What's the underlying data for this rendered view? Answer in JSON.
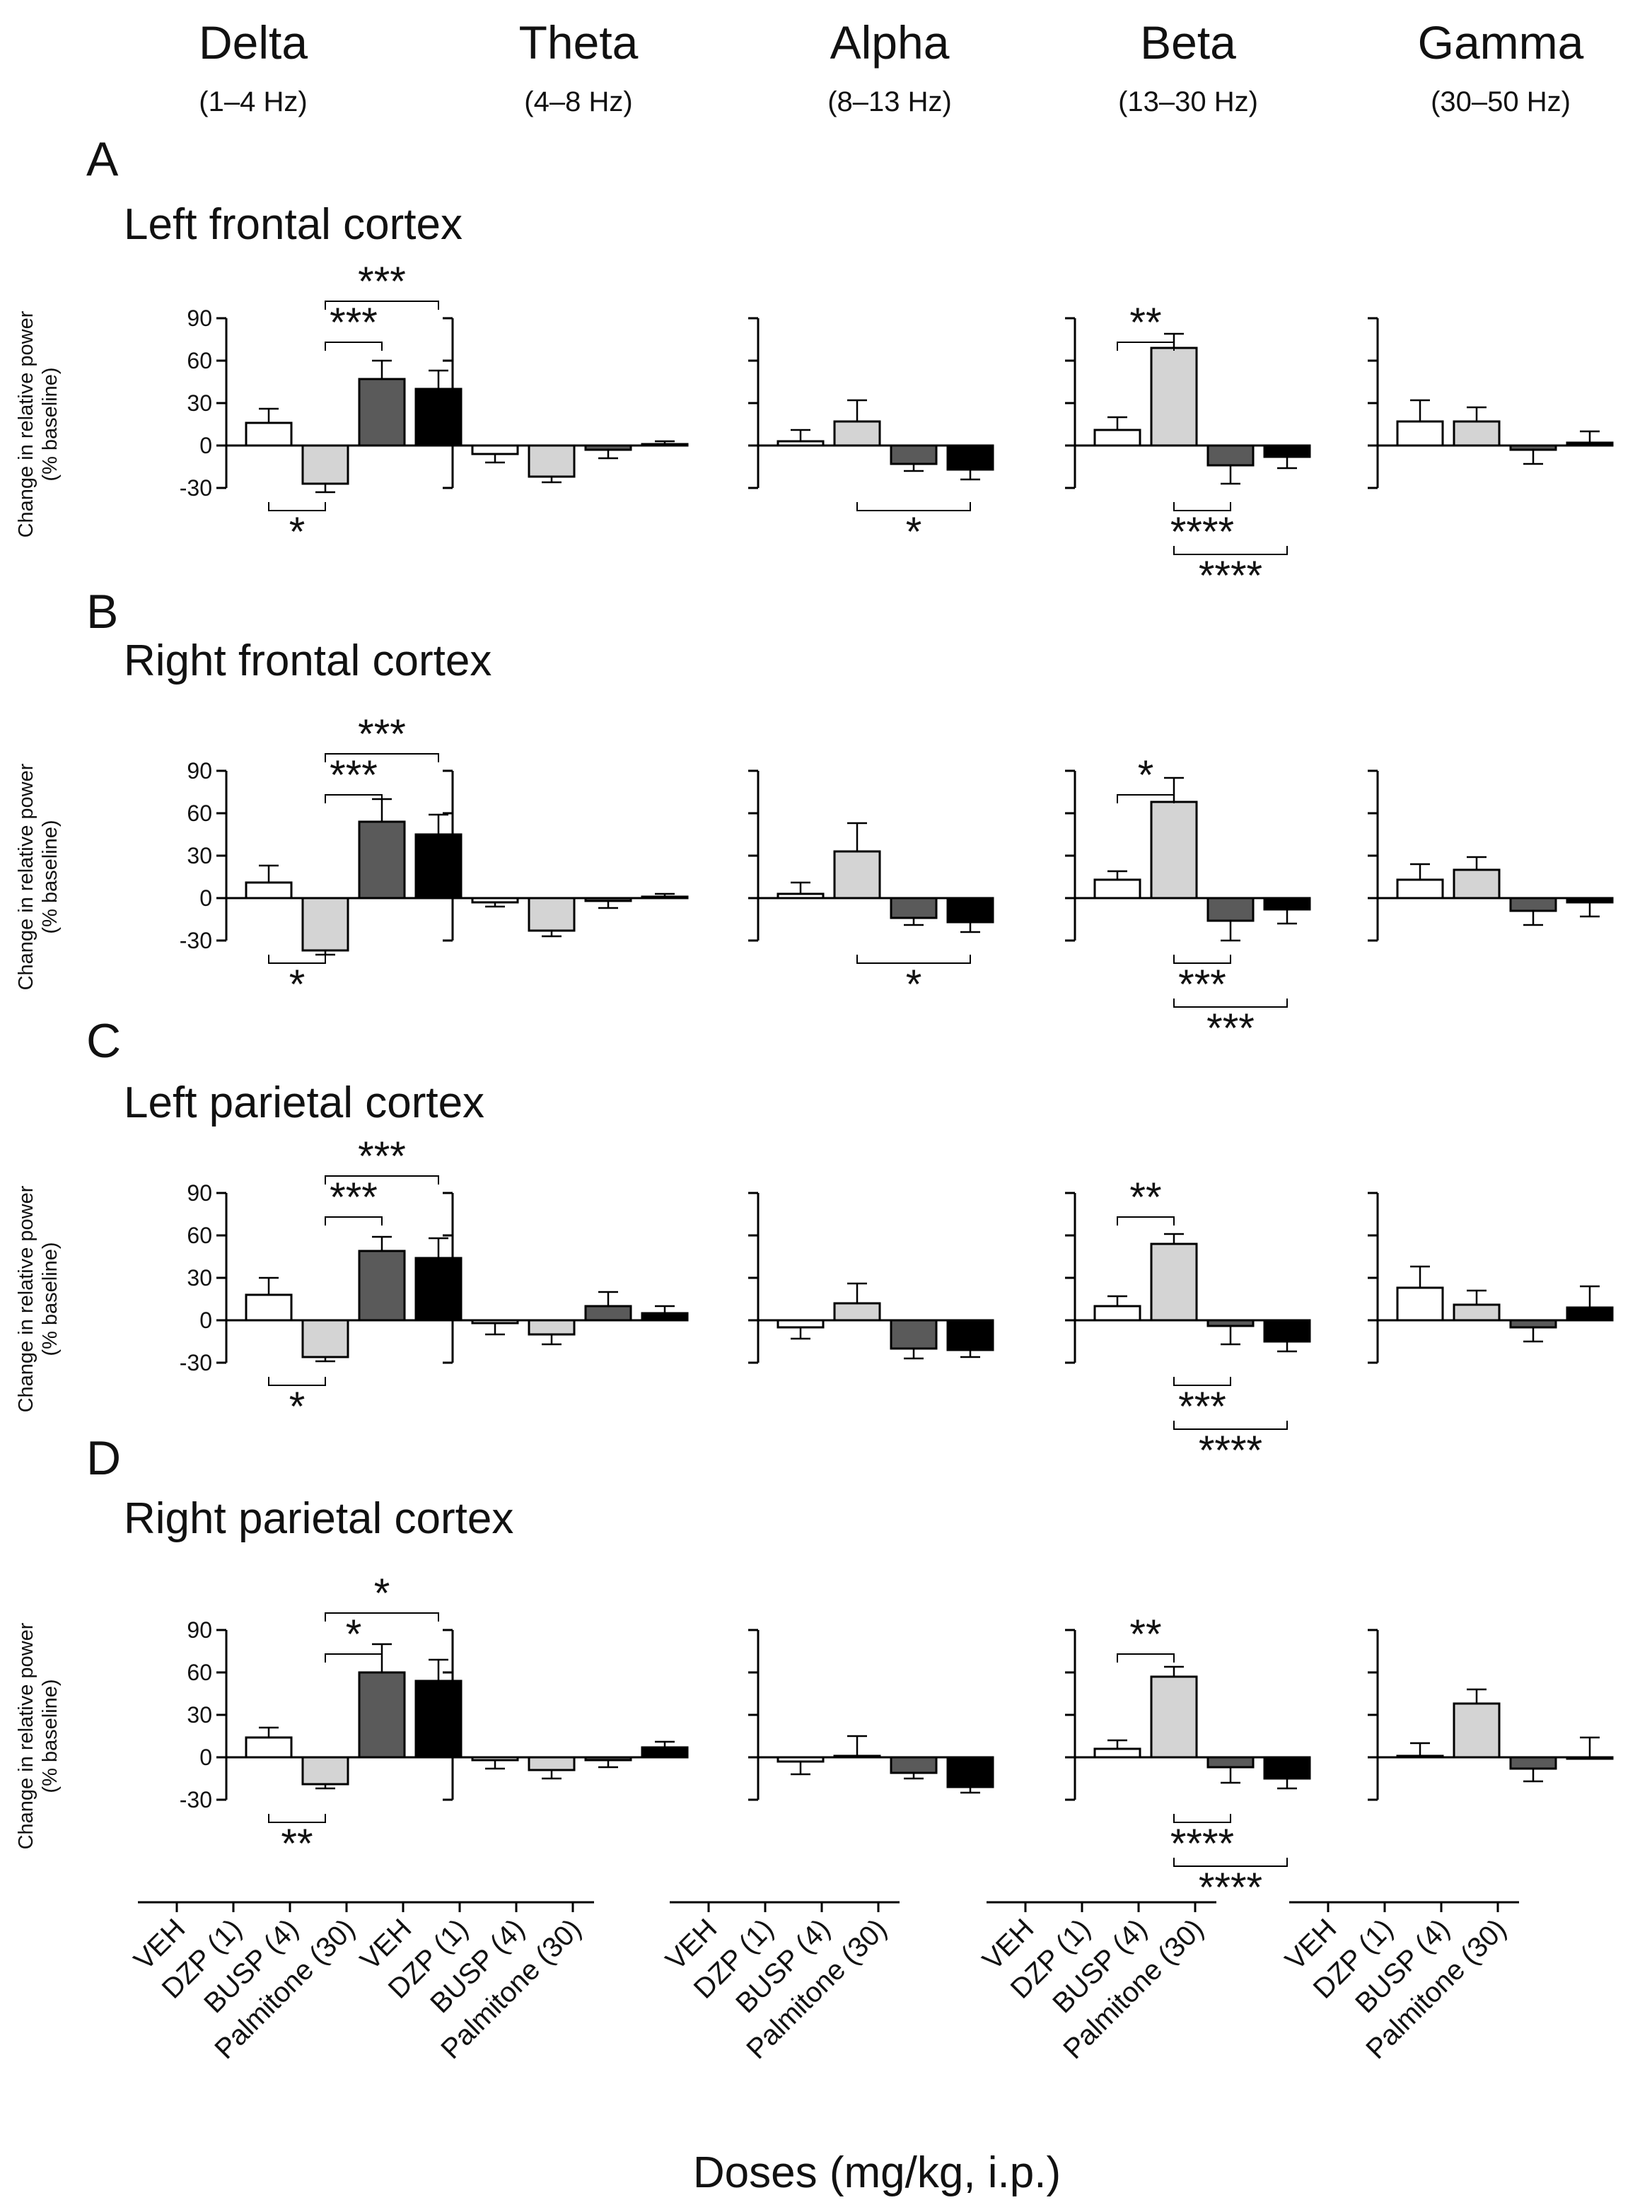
{
  "figure": {
    "x_axis_title": "Doses (mg/kg, i.p.)",
    "y_axis_title_line1": "Change in relative power",
    "y_axis_title_line2": "(% baseline)"
  },
  "bands": [
    {
      "name": "Delta",
      "range": "(1–4 Hz)"
    },
    {
      "name": "Theta",
      "range": "(4–8 Hz)"
    },
    {
      "name": "Alpha",
      "range": "(8–13 Hz)"
    },
    {
      "name": "Beta",
      "range": "(13–30 Hz)"
    },
    {
      "name": "Gamma",
      "range": "(30–50 Hz)"
    }
  ],
  "conditions": [
    "VEH",
    "DZP (1)",
    "BUSP (4)",
    "Palmitone (30)"
  ],
  "colors": {
    "VEH": "#ffffff",
    "DZP (1)": "#d4d4d4",
    "BUSP (4)": "#5a5a5a",
    "Palmitone (30)": "#000000",
    "edge": "#000000"
  },
  "chart_data": {
    "type": "bar",
    "ylim": [
      -30,
      90
    ],
    "yticks": [
      "90",
      "60",
      "30",
      "0",
      "-30"
    ],
    "xlabel": "Doses (mg/kg, i.p.)",
    "ylabel": "Change in relative power (% baseline)",
    "categories": [
      "VEH",
      "DZP (1)",
      "BUSP (4)",
      "Palmitone (30)"
    ],
    "panels": [
      {
        "letter": "A",
        "title": "Left frontal cortex",
        "bands": [
          {
            "band": "Delta",
            "values": [
              16,
              -27,
              47,
              40
            ],
            "errors": [
              10,
              6,
              13,
              13
            ],
            "sig": [
              {
                "from": 0,
                "to": 1,
                "label": "*",
                "pos": "below",
                "level": 0
              },
              {
                "from": 1,
                "to": 2,
                "label": "***",
                "pos": "above",
                "level": 0
              },
              {
                "from": 1,
                "to": 3,
                "label": "***",
                "pos": "above",
                "level": 1
              }
            ]
          },
          {
            "band": "Theta",
            "values": [
              -6,
              -22,
              -3,
              1
            ],
            "errors": [
              6,
              4,
              6,
              2
            ],
            "sig": []
          },
          {
            "band": "Alpha",
            "values": [
              3,
              17,
              -13,
              -17
            ],
            "errors": [
              8,
              15,
              5,
              7
            ],
            "sig": [
              {
                "from": 1,
                "to": 3,
                "label": "*",
                "pos": "below",
                "level": 0
              }
            ]
          },
          {
            "band": "Beta",
            "values": [
              11,
              69,
              -14,
              -8
            ],
            "errors": [
              9,
              10,
              13,
              8
            ],
            "sig": [
              {
                "from": 0,
                "to": 1,
                "label": "**",
                "pos": "above",
                "level": 0
              },
              {
                "from": 1,
                "to": 2,
                "label": "****",
                "pos": "below",
                "level": 0
              },
              {
                "from": 1,
                "to": 3,
                "label": "****",
                "pos": "below",
                "level": 1
              }
            ]
          },
          {
            "band": "Gamma",
            "values": [
              17,
              17,
              -3,
              2
            ],
            "errors": [
              15,
              10,
              10,
              8
            ],
            "sig": []
          }
        ]
      },
      {
        "letter": "B",
        "title": "Right frontal cortex",
        "bands": [
          {
            "band": "Delta",
            "values": [
              11,
              -37,
              54,
              45
            ],
            "errors": [
              12,
              3,
              16,
              14
            ],
            "sig": [
              {
                "from": 0,
                "to": 1,
                "label": "*",
                "pos": "below",
                "level": 0
              },
              {
                "from": 1,
                "to": 2,
                "label": "***",
                "pos": "above",
                "level": 0
              },
              {
                "from": 1,
                "to": 3,
                "label": "***",
                "pos": "above",
                "level": 1
              }
            ]
          },
          {
            "band": "Theta",
            "values": [
              -3,
              -23,
              -2,
              1
            ],
            "errors": [
              3,
              4,
              5,
              2
            ],
            "sig": []
          },
          {
            "band": "Alpha",
            "values": [
              3,
              33,
              -14,
              -17
            ],
            "errors": [
              8,
              20,
              5,
              7
            ],
            "sig": [
              {
                "from": 1,
                "to": 3,
                "label": "*",
                "pos": "below",
                "level": 0
              }
            ]
          },
          {
            "band": "Beta",
            "values": [
              13,
              68,
              -16,
              -8
            ],
            "errors": [
              6,
              17,
              14,
              10
            ],
            "sig": [
              {
                "from": 0,
                "to": 1,
                "label": "*",
                "pos": "above",
                "level": 0
              },
              {
                "from": 1,
                "to": 2,
                "label": "***",
                "pos": "below",
                "level": 0
              },
              {
                "from": 1,
                "to": 3,
                "label": "***",
                "pos": "below",
                "level": 1
              }
            ]
          },
          {
            "band": "Gamma",
            "values": [
              13,
              20,
              -9,
              -3
            ],
            "errors": [
              11,
              9,
              10,
              10
            ],
            "sig": []
          }
        ]
      },
      {
        "letter": "C",
        "title": "Left parietal cortex",
        "bands": [
          {
            "band": "Delta",
            "values": [
              18,
              -26,
              49,
              44
            ],
            "errors": [
              12,
              3,
              10,
              14
            ],
            "sig": [
              {
                "from": 0,
                "to": 1,
                "label": "*",
                "pos": "below",
                "level": 0
              },
              {
                "from": 1,
                "to": 2,
                "label": "***",
                "pos": "above",
                "level": 0
              },
              {
                "from": 1,
                "to": 3,
                "label": "***",
                "pos": "above",
                "level": 1
              }
            ]
          },
          {
            "band": "Theta",
            "values": [
              -2,
              -10,
              10,
              5
            ],
            "errors": [
              8,
              7,
              10,
              5
            ],
            "sig": []
          },
          {
            "band": "Alpha",
            "values": [
              -5,
              12,
              -20,
              -21
            ],
            "errors": [
              8,
              14,
              7,
              5
            ],
            "sig": []
          },
          {
            "band": "Beta",
            "values": [
              10,
              54,
              -4,
              -15
            ],
            "errors": [
              7,
              7,
              13,
              7
            ],
            "sig": [
              {
                "from": 0,
                "to": 1,
                "label": "**",
                "pos": "above",
                "level": 0
              },
              {
                "from": 1,
                "to": 2,
                "label": "***",
                "pos": "below",
                "level": 0
              },
              {
                "from": 1,
                "to": 3,
                "label": "****",
                "pos": "below",
                "level": 1
              }
            ]
          },
          {
            "band": "Gamma",
            "values": [
              23,
              11,
              -5,
              9
            ],
            "errors": [
              15,
              10,
              10,
              15
            ],
            "sig": []
          }
        ]
      },
      {
        "letter": "D",
        "title": "Right parietal cortex",
        "bands": [
          {
            "band": "Delta",
            "values": [
              14,
              -19,
              60,
              54
            ],
            "errors": [
              7,
              3,
              20,
              15
            ],
            "sig": [
              {
                "from": 0,
                "to": 1,
                "label": "**",
                "pos": "below",
                "level": 0
              },
              {
                "from": 1,
                "to": 2,
                "label": "*",
                "pos": "above",
                "level": 0
              },
              {
                "from": 1,
                "to": 3,
                "label": "*",
                "pos": "above",
                "level": 1
              }
            ]
          },
          {
            "band": "Theta",
            "values": [
              -2,
              -9,
              -2,
              7
            ],
            "errors": [
              6,
              6,
              5,
              4
            ],
            "sig": []
          },
          {
            "band": "Alpha",
            "values": [
              -3,
              1,
              -11,
              -21
            ],
            "errors": [
              9,
              14,
              4,
              4
            ],
            "sig": []
          },
          {
            "band": "Beta",
            "values": [
              6,
              57,
              -7,
              -15
            ],
            "errors": [
              6,
              7,
              11,
              7
            ],
            "sig": [
              {
                "from": 0,
                "to": 1,
                "label": "**",
                "pos": "above",
                "level": 0
              },
              {
                "from": 1,
                "to": 2,
                "label": "****",
                "pos": "below",
                "level": 0
              },
              {
                "from": 1,
                "to": 3,
                "label": "****",
                "pos": "below",
                "level": 1
              }
            ]
          },
          {
            "band": "Gamma",
            "values": [
              1,
              38,
              -8,
              0
            ],
            "errors": [
              9,
              10,
              9,
              14
            ],
            "sig": []
          }
        ]
      }
    ]
  }
}
